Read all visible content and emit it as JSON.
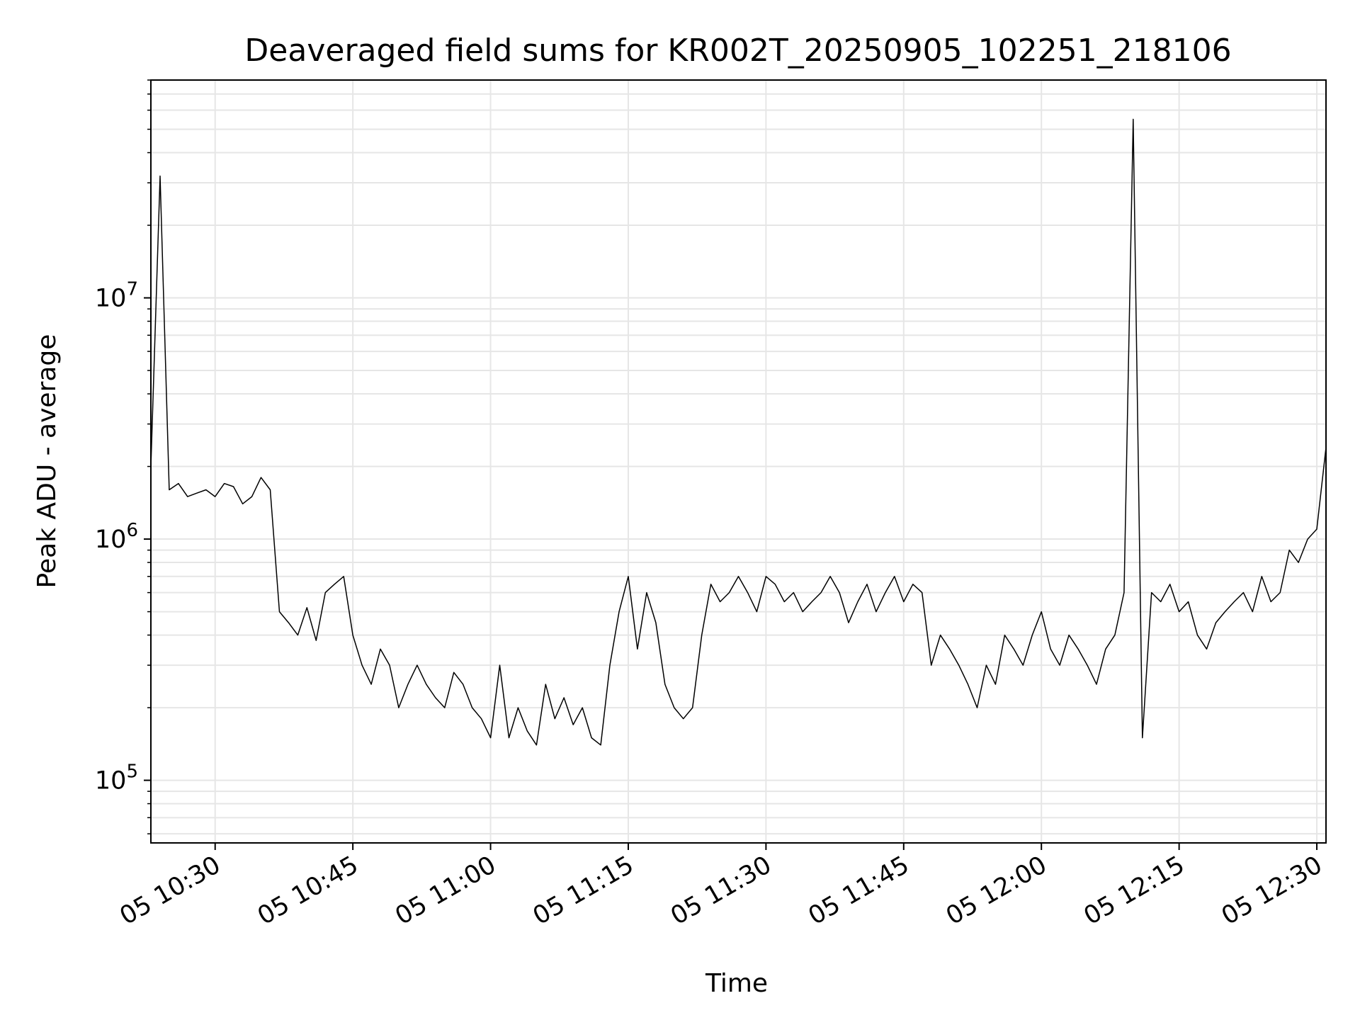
{
  "chart_data": {
    "type": "line",
    "title": "Deaveraged field sums for KR002T_20250905_102251_218106",
    "xlabel": "Time",
    "ylabel": "Peak ADU - average",
    "x_ticks": [
      "05 10:30",
      "05 10:45",
      "05 11:00",
      "05 11:15",
      "05 11:30",
      "05 11:45",
      "05 12:00",
      "05 12:15",
      "05 12:30"
    ],
    "y_ticks": [
      {
        "value": 100000,
        "base": "10",
        "exp": "5"
      },
      {
        "value": 1000000,
        "base": "10",
        "exp": "6"
      },
      {
        "value": 10000000,
        "base": "10",
        "exp": "7"
      }
    ],
    "x_range": [
      "2025-09-05 10:23",
      "2025-09-05 12:31"
    ],
    "y_range": [
      55000,
      80000000
    ],
    "y_scale": "log",
    "grid": "major and minor",
    "legend": "none",
    "line_color": "#000000",
    "series": [
      {
        "x": [
          "10:23",
          "10:24",
          "10:25",
          "10:26",
          "10:27",
          "10:28",
          "10:29",
          "10:30",
          "10:31",
          "10:32",
          "10:33",
          "10:34",
          "10:35",
          "10:36",
          "10:37",
          "10:38",
          "10:39",
          "10:40",
          "10:41",
          "10:42",
          "10:43",
          "10:44",
          "10:45",
          "10:46",
          "10:47",
          "10:48",
          "10:49",
          "10:50",
          "10:51",
          "10:52",
          "10:53",
          "10:54",
          "10:55",
          "10:56",
          "10:57",
          "10:58",
          "10:59",
          "11:00",
          "11:01",
          "11:02",
          "11:03",
          "11:04",
          "11:05",
          "11:06",
          "11:07",
          "11:08",
          "11:09",
          "11:10",
          "11:11",
          "11:12",
          "11:13",
          "11:14",
          "11:15",
          "11:16",
          "11:17",
          "11:18",
          "11:19",
          "11:20",
          "11:21",
          "11:22",
          "11:23",
          "11:24",
          "11:25",
          "11:26",
          "11:27",
          "11:28",
          "11:29",
          "11:30",
          "11:31",
          "11:32",
          "11:33",
          "11:34",
          "11:35",
          "11:36",
          "11:37",
          "11:38",
          "11:39",
          "11:40",
          "11:41",
          "11:42",
          "11:43",
          "11:44",
          "11:45",
          "11:46",
          "11:47",
          "11:48",
          "11:49",
          "11:50",
          "11:51",
          "11:52",
          "11:53",
          "11:54",
          "11:55",
          "11:56",
          "11:57",
          "11:58",
          "11:59",
          "12:00",
          "12:01",
          "12:02",
          "12:03",
          "12:04",
          "12:05",
          "12:06",
          "12:07",
          "12:08",
          "12:09",
          "12:10",
          "12:11",
          "12:12",
          "12:13",
          "12:14",
          "12:15",
          "12:16",
          "12:17",
          "12:18",
          "12:19",
          "12:20",
          "12:21",
          "12:22",
          "12:23",
          "12:24",
          "12:25",
          "12:26",
          "12:27",
          "12:28",
          "12:29",
          "12:30",
          "12:31"
        ],
        "y": [
          2000000,
          32000000,
          1600000,
          1700000,
          1500000,
          1550000,
          1600000,
          1500000,
          1700000,
          1650000,
          1400000,
          1500000,
          1800000,
          1600000,
          500000,
          450000,
          400000,
          520000,
          380000,
          600000,
          650000,
          700000,
          400000,
          300000,
          250000,
          350000,
          300000,
          200000,
          250000,
          300000,
          250000,
          220000,
          200000,
          280000,
          250000,
          200000,
          180000,
          150000,
          300000,
          150000,
          200000,
          160000,
          140000,
          250000,
          180000,
          220000,
          170000,
          200000,
          150000,
          140000,
          300000,
          500000,
          700000,
          350000,
          600000,
          450000,
          250000,
          200000,
          180000,
          200000,
          400000,
          650000,
          550000,
          600000,
          700000,
          600000,
          500000,
          700000,
          650000,
          550000,
          600000,
          500000,
          550000,
          600000,
          700000,
          600000,
          450000,
          550000,
          650000,
          500000,
          600000,
          700000,
          550000,
          650000,
          600000,
          300000,
          400000,
          350000,
          300000,
          250000,
          200000,
          300000,
          250000,
          400000,
          350000,
          300000,
          400000,
          500000,
          350000,
          300000,
          400000,
          350000,
          300000,
          250000,
          350000,
          400000,
          600000,
          55000000,
          150000,
          600000,
          550000,
          650000,
          500000,
          550000,
          400000,
          350000,
          450000,
          500000,
          550000,
          600000,
          500000,
          700000,
          550000,
          600000,
          900000,
          800000,
          1000000,
          1100000,
          2400000
        ]
      }
    ]
  }
}
